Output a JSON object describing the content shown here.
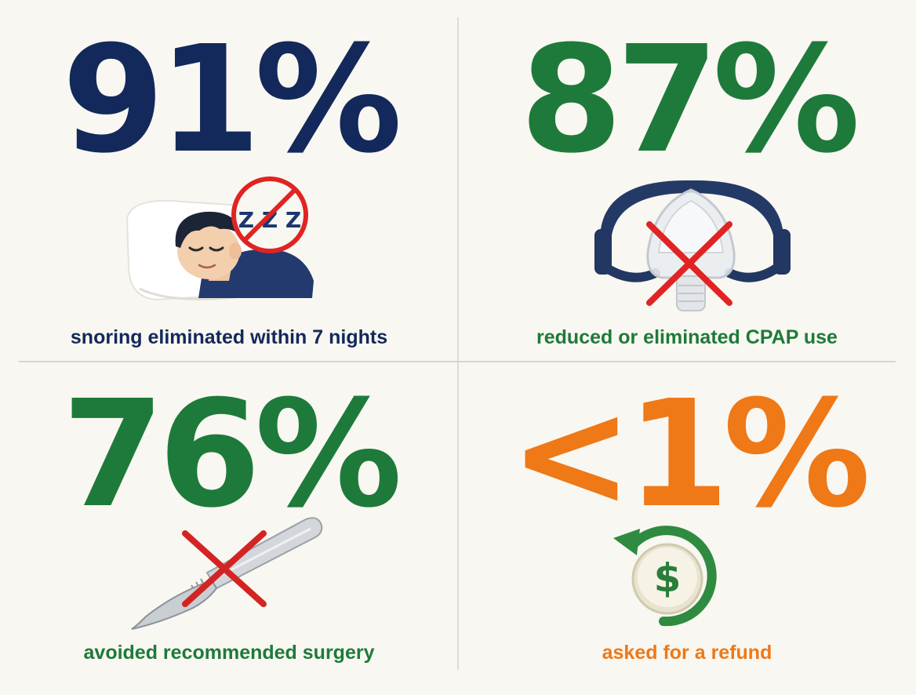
{
  "colors": {
    "navy": "#13295b",
    "green": "#1e7a3a",
    "orange": "#ef7817",
    "red_x": "#e02424",
    "background": "#f9f7f1"
  },
  "stats": [
    {
      "value": "91%",
      "caption": "snoring eliminated within 7 nights",
      "color": "#13295b",
      "icon": "sleeping-man-no-snore-icon"
    },
    {
      "value": "87%",
      "caption": "reduced or eliminated CPAP use",
      "color": "#1e7a3a",
      "icon": "cpap-mask-crossed-icon"
    },
    {
      "value": "76%",
      "caption": "avoided recommended surgery",
      "color": "#1e7a3a",
      "icon": "scalpel-crossed-icon"
    },
    {
      "value": "<1%",
      "caption": "asked for a refund",
      "color": "#ef7817",
      "icon": "refund-coin-icon"
    }
  ],
  "snore_icon_text": "Z Z Z",
  "coin_symbol": "$"
}
